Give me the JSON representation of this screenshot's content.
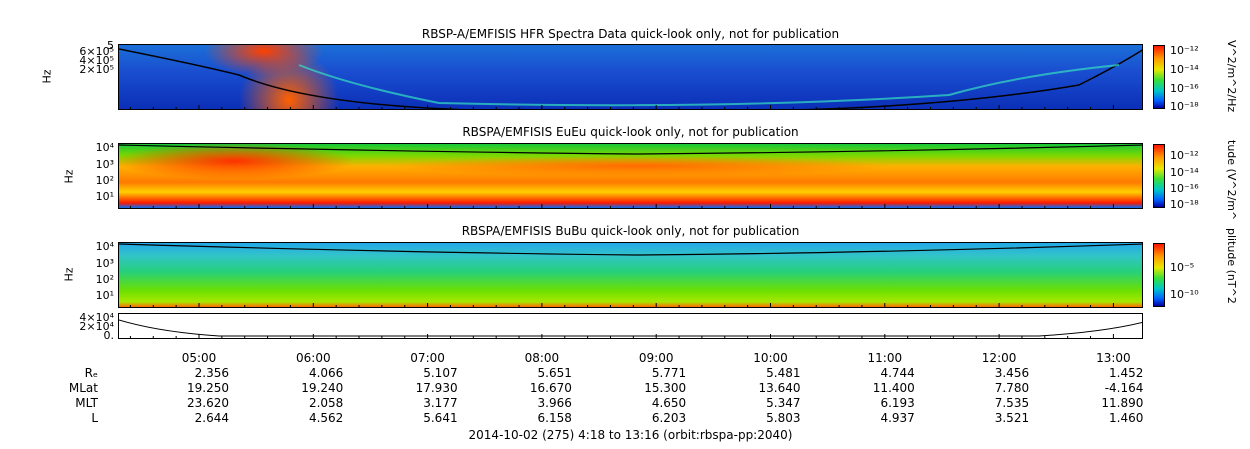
{
  "panels": [
    {
      "title": "RBSP-A/EMFISIS  HFR Spectra Data quick-look only, not for publication",
      "ylabel": "Hz",
      "yticks": [
        "6×10⁵",
        "4×10⁵",
        "2×10⁵",
        "5"
      ],
      "colorbar_label": "V^2/m^2/Hz",
      "colorbar_ticks": [
        "10⁻¹²",
        "10⁻¹⁴",
        "10⁻¹⁶",
        "10⁻¹⁸"
      ]
    },
    {
      "title": "RBSPA/EMFISIS  EuEu quick-look only, not for publication",
      "ylabel": "Hz",
      "yticks": [
        "10⁴",
        "10³",
        "10²",
        "10¹"
      ],
      "colorbar_label": "tude (V^2/m^",
      "colorbar_ticks": [
        "10⁻¹²",
        "10⁻¹⁴",
        "10⁻¹⁶",
        "10⁻¹⁸"
      ]
    },
    {
      "title": "RBSPA/EMFISIS  BuBu quick-look only, not for publication",
      "ylabel": "Hz",
      "yticks": [
        "10⁴",
        "10³",
        "10²",
        "10¹"
      ],
      "colorbar_label": "plitude (nT^2",
      "colorbar_ticks": [
        "10⁻⁵",
        "10⁻¹⁰"
      ]
    },
    {
      "yticks": [
        "4×10⁴",
        "2×10⁴",
        "0."
      ]
    }
  ],
  "chart_data": {
    "type": "heatmap",
    "x_ticks": [
      "05:00",
      "06:00",
      "07:00",
      "08:00",
      "09:00",
      "10:00",
      "11:00",
      "12:00",
      "13:00"
    ],
    "ephemeris": [
      {
        "label": "Rₑ",
        "values": [
          "2.356",
          "4.066",
          "5.107",
          "5.651",
          "5.771",
          "5.481",
          "4.744",
          "3.456",
          "1.452"
        ]
      },
      {
        "label": "MLat",
        "values": [
          "19.250",
          "19.240",
          "17.930",
          "16.670",
          "15.300",
          "13.640",
          "11.400",
          "7.780",
          "-4.164"
        ]
      },
      {
        "label": "MLT",
        "values": [
          "23.620",
          "2.058",
          "3.177",
          "3.966",
          "4.650",
          "5.347",
          "6.193",
          "7.535",
          "11.890"
        ]
      },
      {
        "label": "L",
        "values": [
          "2.644",
          "4.562",
          "5.641",
          "6.158",
          "6.203",
          "5.803",
          "4.937",
          "3.521",
          "1.460"
        ]
      }
    ],
    "footer": "2014-10-02 (275) 4:18 to 13:16 (orbit:rbspa-pp:2040)"
  }
}
